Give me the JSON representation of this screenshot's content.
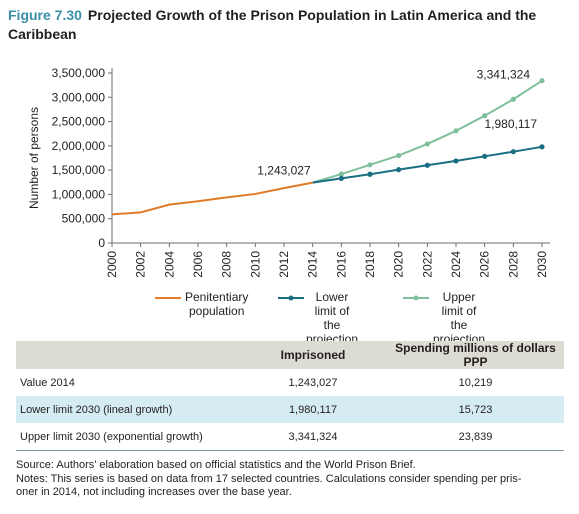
{
  "figure": {
    "number": "Figure 7.30",
    "title": "Projected Growth of the Prison Population in Latin America and the Caribbean"
  },
  "chart_data": {
    "type": "line",
    "ylabel": "Number of persons",
    "xlabel": "",
    "ylim": [
      0,
      3500000
    ],
    "yticks": [
      0,
      500000,
      1000000,
      1500000,
      2000000,
      2500000,
      3000000,
      3500000
    ],
    "ytick_labels": [
      "0",
      "500,000",
      "1,000,000",
      "1,500,000",
      "2,000,000",
      "2,500,000",
      "3,000,000",
      "3,500,000"
    ],
    "xlim": [
      2000,
      2030
    ],
    "xticks": [
      "2000",
      "2002",
      "2004",
      "2006",
      "2008",
      "2010",
      "2012",
      "2014",
      "2016",
      "2018",
      "2020",
      "2022",
      "2024",
      "2026",
      "2028",
      "2030"
    ],
    "grid": false,
    "legend_position": "bottom",
    "series": [
      {
        "name": "Penitentiary population",
        "color": "#e07b2a",
        "marker": "none",
        "x": [
          2000,
          2002,
          2004,
          2006,
          2008,
          2010,
          2012,
          2014
        ],
        "y": [
          590000,
          630000,
          790000,
          860000,
          940000,
          1010000,
          1130000,
          1243027
        ]
      },
      {
        "name": "Lower limit of the projection",
        "color": "#1a6e82",
        "marker": "circle",
        "x": [
          2014,
          2016,
          2018,
          2020,
          2022,
          2024,
          2026,
          2028,
          2030
        ],
        "y": [
          1243027,
          1330000,
          1415000,
          1510000,
          1600000,
          1690000,
          1785000,
          1880000,
          1980117
        ]
      },
      {
        "name": "Upper limit of the projection",
        "color": "#7fbf9c",
        "marker": "circle",
        "x": [
          2014,
          2016,
          2018,
          2020,
          2022,
          2024,
          2026,
          2028,
          2030
        ],
        "y": [
          1243027,
          1420000,
          1610000,
          1800000,
          2040000,
          2310000,
          2620000,
          2960000,
          3341324
        ]
      }
    ],
    "annotations": [
      {
        "text": "1,243,027",
        "x": 2014,
        "y": 1243027
      },
      {
        "text": "1,980,117",
        "x": 2030,
        "y": 1980117
      },
      {
        "text": "3,341,324",
        "x": 2030,
        "y": 3341324
      }
    ]
  },
  "legend": {
    "penitentiary": [
      "Penitentiary",
      "population"
    ],
    "lower": [
      "Lower limit of",
      "the projection"
    ],
    "upper": [
      "Upper limit of",
      "the projection"
    ]
  },
  "table": {
    "headers": [
      "",
      "Imprisoned",
      "Spending millions of dollars PPP"
    ],
    "rows": [
      [
        "Value 2014",
        "1,243,027",
        "10,219"
      ],
      [
        "Lower limit 2030 (lineal growth)",
        "1,980,117",
        "15,723"
      ],
      [
        "Upper limit 2030 (exponential growth)",
        "3,341,324",
        "23,839"
      ]
    ]
  },
  "notes": {
    "source": "Source: Authors’ elaboration based on official statistics and the World Prison Brief.",
    "notes_line1": "Notes: This series is based on data from 17 selected countries. Calculations consider spending per pris-",
    "notes_line2": "oner in 2014, not including increases over the base year."
  }
}
